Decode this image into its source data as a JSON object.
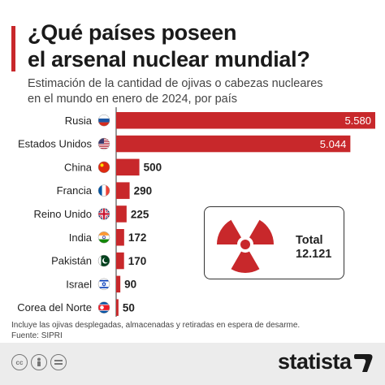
{
  "header": {
    "title_line1": "¿Qué países poseen",
    "title_line2": "el arsenal nuclear mundial?",
    "subtitle_line1": "Estimación de la cantidad de ojivas o cabezas nucleares",
    "subtitle_line2": "en el mundo en enero de 2024, por país"
  },
  "chart_data": {
    "type": "bar",
    "orientation": "horizontal",
    "categories": [
      "Rusia",
      "Estados Unidos",
      "China",
      "Francia",
      "Reino Unido",
      "India",
      "Pakistán",
      "Israel",
      "Corea del Norte"
    ],
    "values": [
      5580,
      5044,
      500,
      290,
      225,
      172,
      170,
      90,
      50
    ],
    "value_labels": [
      "5.580",
      "5.044",
      "500",
      "290",
      "225",
      "172",
      "170",
      "90",
      "50"
    ],
    "flags": [
      "russia-flag",
      "usa-flag",
      "china-flag",
      "france-flag",
      "uk-flag",
      "india-flag",
      "pakistan-flag",
      "israel-flag",
      "north-korea-flag"
    ],
    "xlim": [
      0,
      5580
    ],
    "grid": false,
    "bar_color": "#c8282b"
  },
  "total": {
    "label": "Total",
    "value": "12.121",
    "icon": "radiation-icon",
    "icon_color": "#c8282b"
  },
  "footnote": {
    "line1": "Incluye las ojivas desplegadas, almacenadas y retiradas en espera de desarme.",
    "line2": "Fuente: SIPRI"
  },
  "footer": {
    "brand": "statista",
    "license_icons": [
      "cc-icon",
      "by-icon",
      "nd-icon"
    ]
  }
}
